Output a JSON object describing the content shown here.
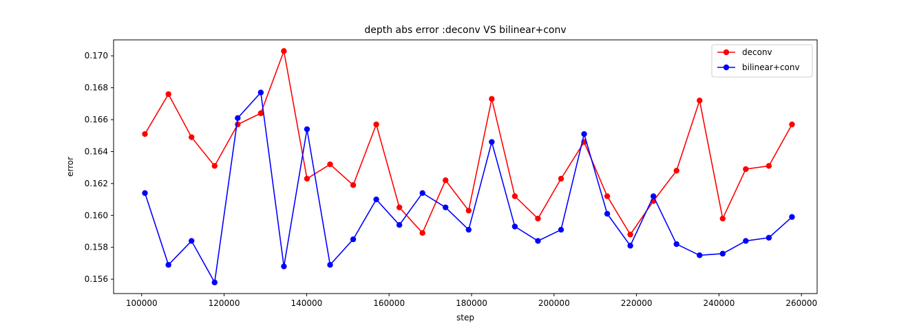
{
  "chart_data": {
    "type": "line",
    "title": "depth abs error :deconv VS bilinear+conv",
    "xlabel": "step",
    "ylabel": "error",
    "xlim": [
      93200,
      263800
    ],
    "ylim": [
      0.1551,
      0.171
    ],
    "xticks": [
      100000,
      120000,
      140000,
      160000,
      180000,
      200000,
      220000,
      240000,
      260000
    ],
    "xtick_labels": [
      "100000",
      "120000",
      "140000",
      "160000",
      "180000",
      "200000",
      "220000",
      "240000",
      "260000"
    ],
    "yticks": [
      0.156,
      0.158,
      0.16,
      0.162,
      0.164,
      0.166,
      0.168,
      0.17
    ],
    "ytick_labels": [
      "0.156",
      "0.158",
      "0.160",
      "0.162",
      "0.164",
      "0.166",
      "0.168",
      "0.170"
    ],
    "grid": false,
    "legend_position": "top-right",
    "x": [
      100800,
      106500,
      112100,
      117700,
      123300,
      128900,
      134500,
      140100,
      145700,
      151300,
      156900,
      162500,
      168100,
      173700,
      179300,
      184900,
      190500,
      196100,
      201700,
      207300,
      212900,
      218500,
      224100,
      229700,
      235300,
      240900,
      246500,
      252100,
      257700
    ],
    "series": [
      {
        "name": "deconv",
        "color": "#ff0000",
        "values": [
          0.1651,
          0.1676,
          0.1649,
          0.1631,
          0.1657,
          0.1664,
          0.1703,
          0.1623,
          0.1632,
          0.1619,
          0.1657,
          0.1605,
          0.1589,
          0.1622,
          0.1603,
          0.1673,
          0.1612,
          0.1598,
          0.1623,
          0.1646,
          0.1612,
          0.1588,
          0.1609,
          0.1628,
          0.1672,
          0.1598,
          0.1629,
          0.1631,
          0.1657
        ]
      },
      {
        "name": "bilinear+conv",
        "color": "#0000ff",
        "values": [
          0.1614,
          0.1569,
          0.1584,
          0.1558,
          0.1661,
          0.1677,
          0.1568,
          0.1654,
          0.1569,
          0.1585,
          0.161,
          0.1594,
          0.1614,
          0.1605,
          0.1591,
          0.1646,
          0.1593,
          0.1584,
          0.1591,
          0.1651,
          0.1601,
          0.1581,
          0.1612,
          0.1582,
          0.1575,
          0.1576,
          0.1584,
          0.1586,
          0.1599
        ]
      }
    ]
  }
}
